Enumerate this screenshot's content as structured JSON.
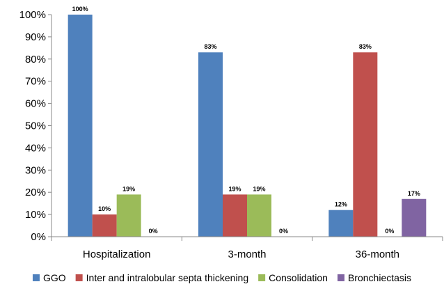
{
  "chart_data": {
    "type": "bar",
    "categories": [
      "Hospitalization",
      "3-month",
      "36-month"
    ],
    "series": [
      {
        "name": "GGO",
        "values": [
          100,
          83,
          12
        ],
        "color": "#4F81BD"
      },
      {
        "name": "Inter and intralobular septa thickening",
        "values": [
          10,
          19,
          83
        ],
        "color": "#C0504D"
      },
      {
        "name": "Consolidation",
        "values": [
          19,
          19,
          0
        ],
        "color": "#9BBB59"
      },
      {
        "name": "Bronchiectasis",
        "values": [
          0,
          0,
          17
        ],
        "color": "#8064A2"
      }
    ],
    "value_labels": [
      [
        "100%",
        "83%",
        "12%"
      ],
      [
        "10%",
        "19%",
        "83%"
      ],
      [
        "19%",
        "19%",
        "0%"
      ],
      [
        "0%",
        "0%",
        "17%"
      ]
    ],
    "y_ticks": [
      "0%",
      "10%",
      "20%",
      "30%",
      "40%",
      "50%",
      "60%",
      "70%",
      "80%",
      "90%",
      "100%"
    ],
    "ylim": [
      0,
      100
    ],
    "title": "",
    "xlabel": "",
    "ylabel": "",
    "grid": false,
    "legend_position": "bottom"
  }
}
